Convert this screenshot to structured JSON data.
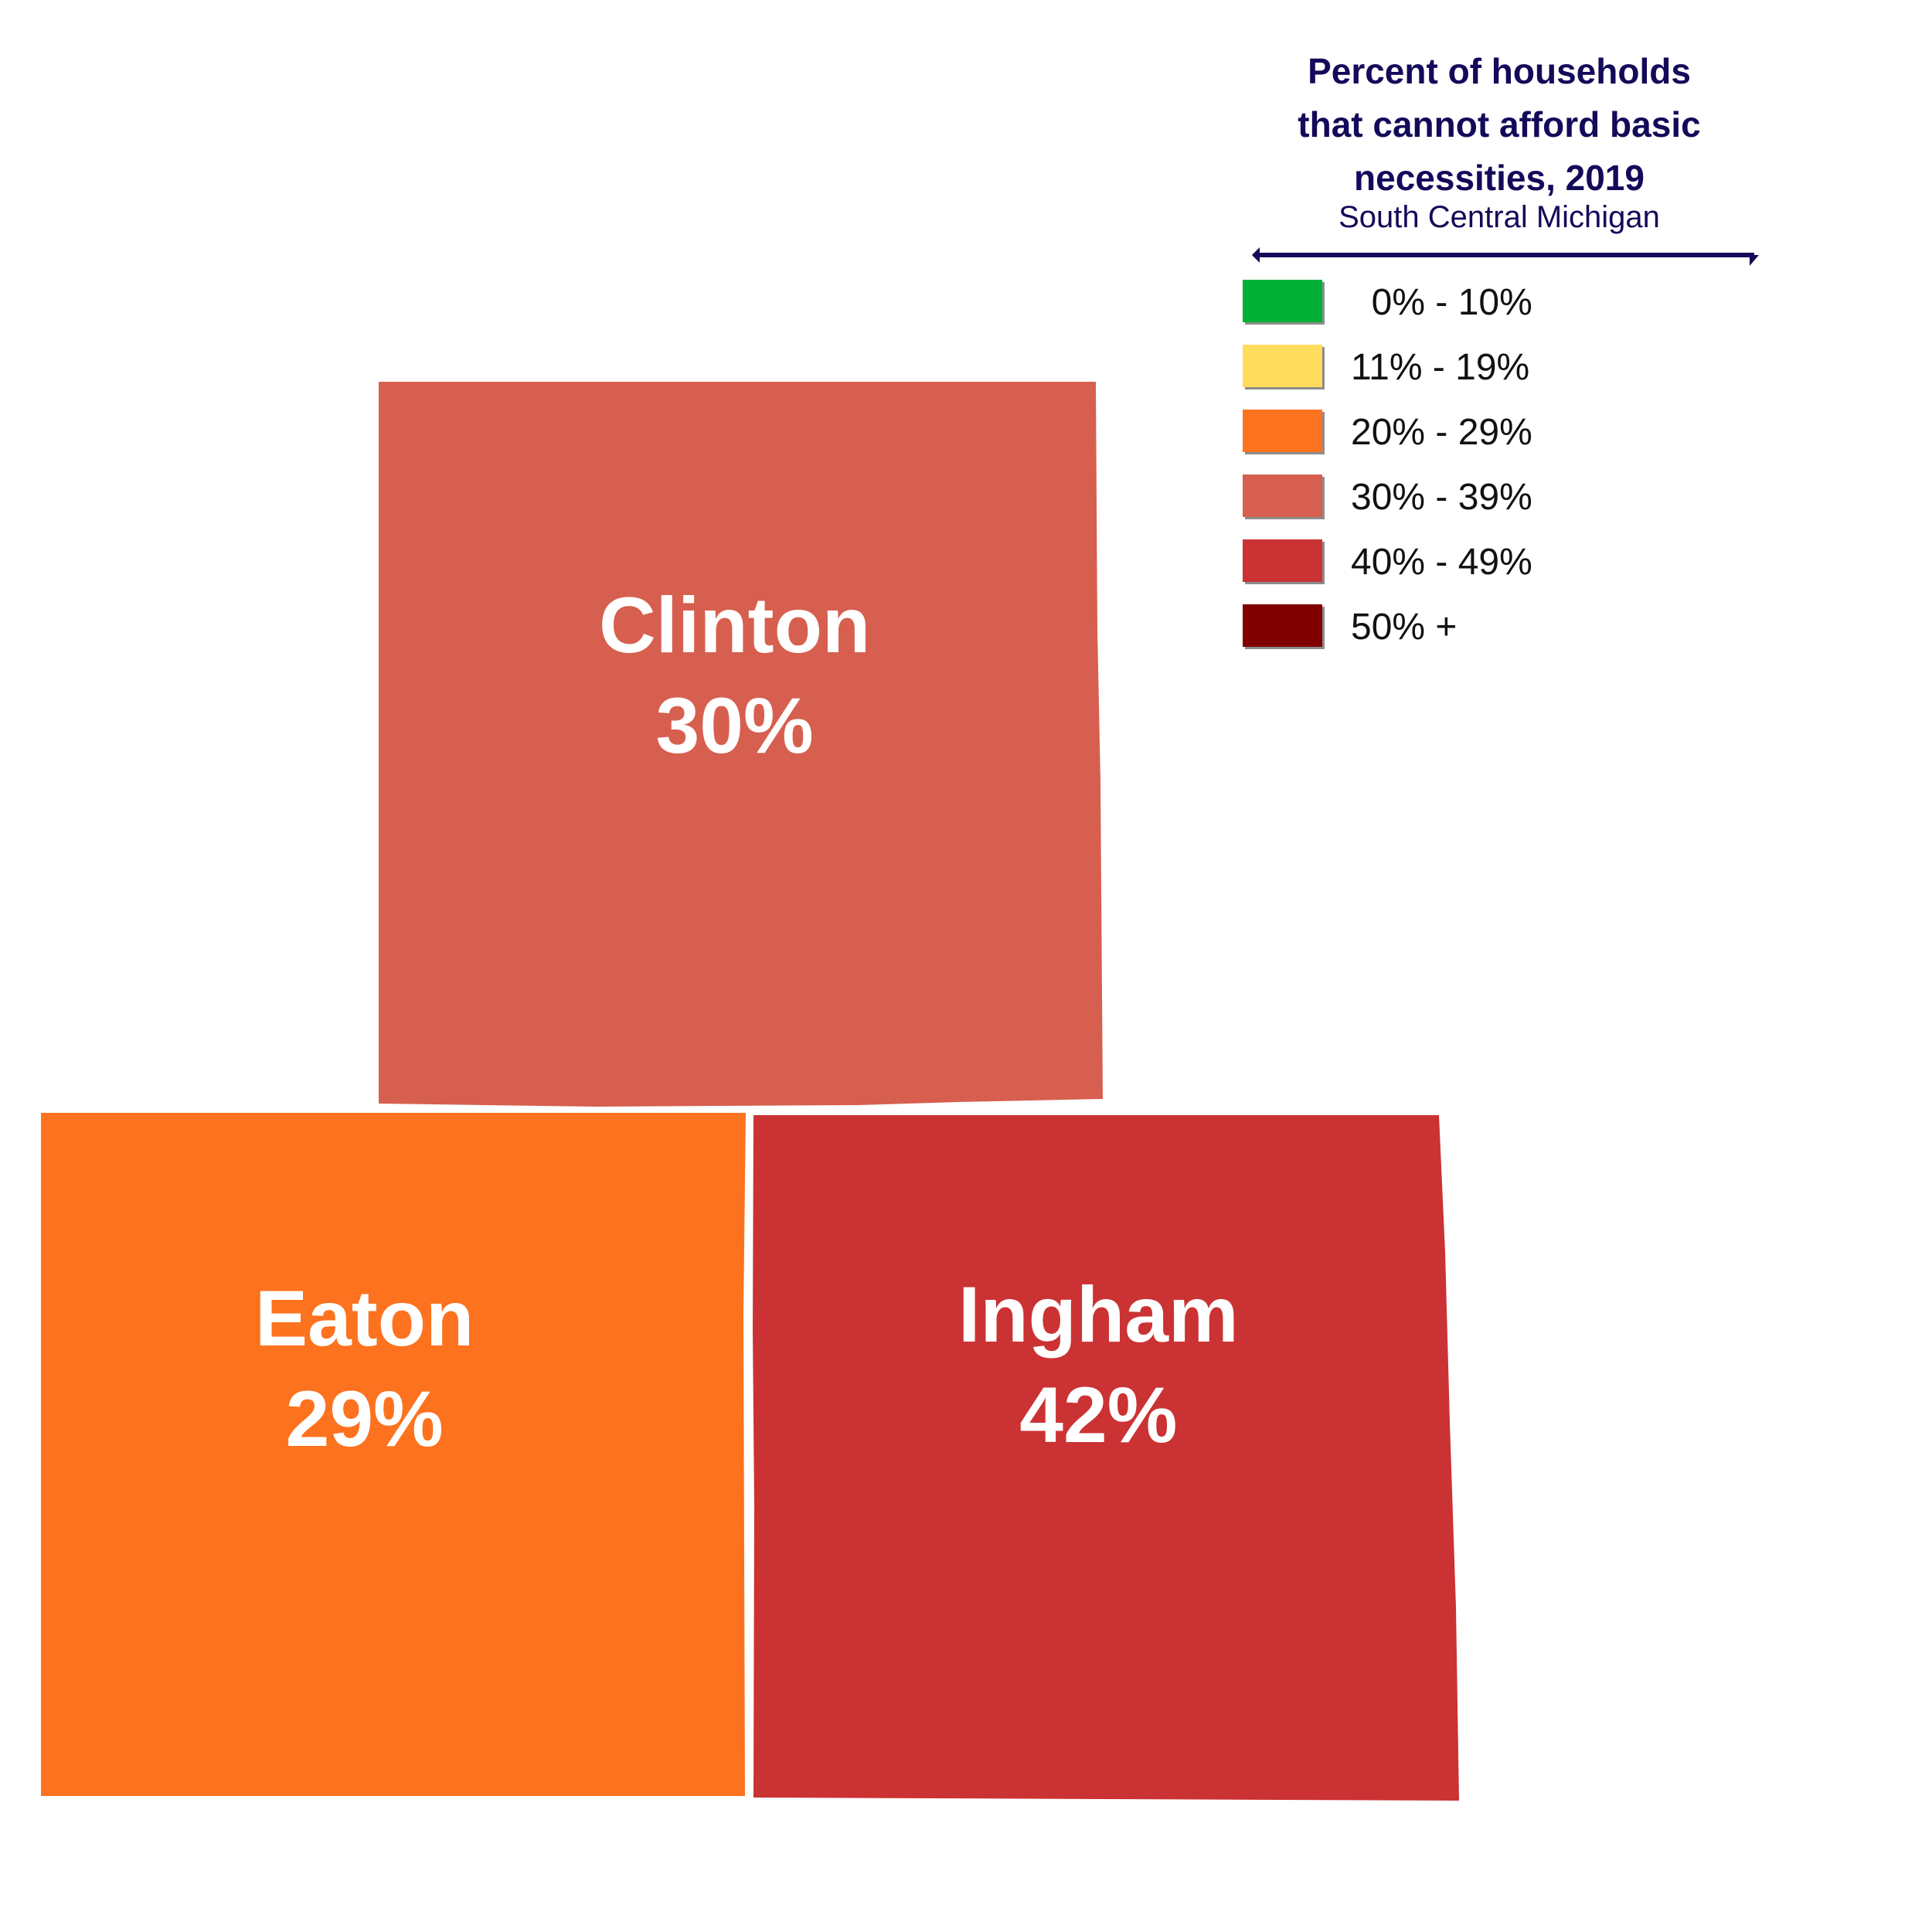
{
  "legend": {
    "title_line1": "Percent of households",
    "title_line2": "that cannot afford basic",
    "title_line3": "necessities, 2019",
    "subtitle": "South Central Michigan",
    "items": [
      {
        "label": "  0% - 10%",
        "color": "#00b036"
      },
      {
        "label": "11% - 19%",
        "color": "#ffdc5c"
      },
      {
        "label": "20% - 29%",
        "color": "#fd721e"
      },
      {
        "label": "30% - 39%",
        "color": "#d75f4f"
      },
      {
        "label": "40% - 49%",
        "color": "#cb3233"
      },
      {
        "label": "50% +",
        "color": "#800000"
      }
    ]
  },
  "counties": [
    {
      "name": "Clinton",
      "value": "30%",
      "color": "#d75f4f"
    },
    {
      "name": "Eaton",
      "value": "29%",
      "color": "#fd721e"
    },
    {
      "name": "Ingham",
      "value": "42%",
      "color": "#cb3233"
    }
  ]
}
